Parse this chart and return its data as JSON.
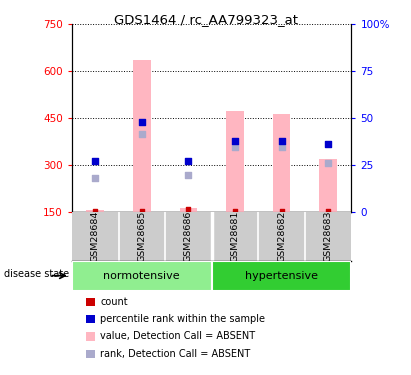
{
  "title": "GDS1464 / rc_AA799323_at",
  "samples": [
    "GSM28684",
    "GSM28685",
    "GSM28686",
    "GSM28681",
    "GSM28682",
    "GSM28683"
  ],
  "normotensive_color": "#90ee90",
  "hypertensive_color": "#32cd32",
  "bar_color_absent": "#ffb6c1",
  "rank_color_absent": "#aaaacc",
  "count_color": "#cc0000",
  "rank_pct_color": "#0000cc",
  "ylim_left": [
    150,
    750
  ],
  "ylim_right": [
    0,
    100
  ],
  "yticks_left": [
    150,
    300,
    450,
    600,
    750
  ],
  "yticks_right": [
    0,
    25,
    50,
    75,
    100
  ],
  "ytick_labels_right": [
    "0",
    "25",
    "50",
    "75",
    "100%"
  ],
  "bar_values": [
    156,
    635,
    162,
    473,
    463,
    318
  ],
  "rank_pct_values": [
    27,
    48,
    27,
    38,
    38,
    36
  ],
  "blue_rank_values": [
    260,
    400,
    268,
    358,
    358,
    305
  ],
  "count_values": [
    152,
    152,
    158,
    152,
    152,
    152
  ],
  "bar_bottom": 150,
  "label_area_color": "#cccccc",
  "legend_items": [
    {
      "label": "count",
      "color": "#cc0000"
    },
    {
      "label": "percentile rank within the sample",
      "color": "#0000cc"
    },
    {
      "label": "value, Detection Call = ABSENT",
      "color": "#ffb6c1"
    },
    {
      "label": "rank, Detection Call = ABSENT",
      "color": "#aaaacc"
    }
  ]
}
